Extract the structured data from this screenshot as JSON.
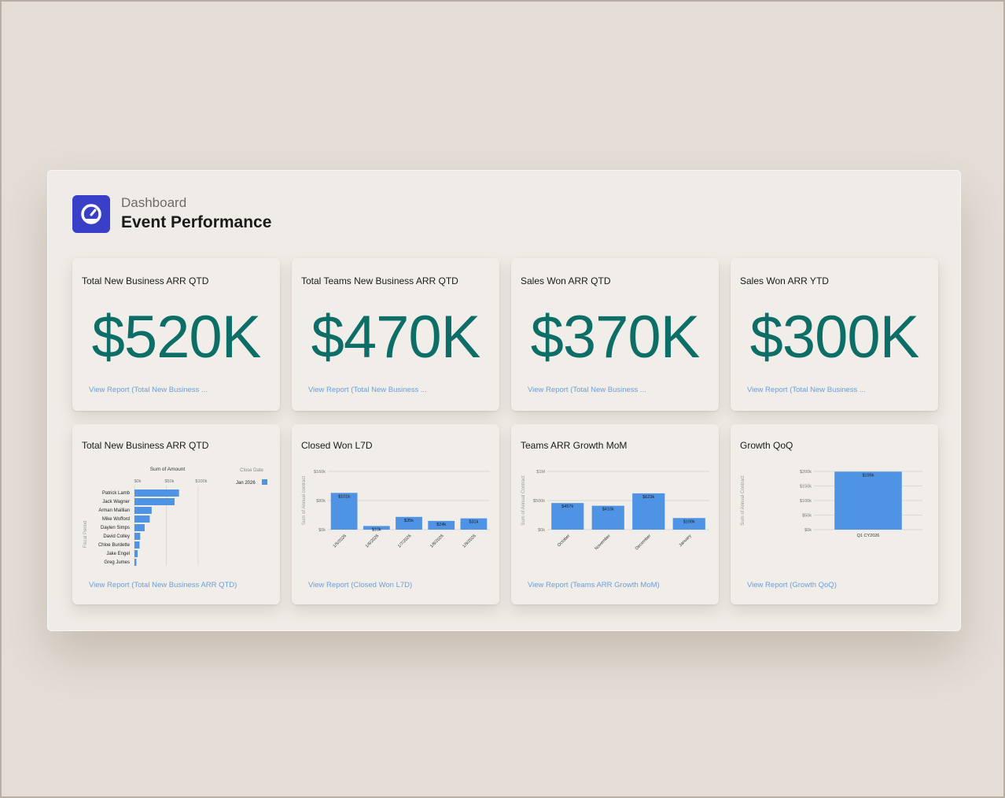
{
  "header": {
    "breadcrumb": "Dashboard",
    "title": "Event Performance",
    "logo_icon": "gauge-icon"
  },
  "colors": {
    "accent": "#0d6e67",
    "bar": "#4f94e4",
    "link": "#6a9ed8",
    "logo": "#3a3fc7"
  },
  "kpis": [
    {
      "title": "Total New Business ARR QTD",
      "value": "$520K",
      "link": "View Report (Total New Business ..."
    },
    {
      "title": "Total Teams New Business ARR QTD",
      "value": "$470K",
      "link": "View Report (Total New Business ..."
    },
    {
      "title": "Sales Won ARR QTD",
      "value": "$370K",
      "link": "View Report (Total New Business ..."
    },
    {
      "title": "Sales Won ARR YTD",
      "value": "$300K",
      "link": "View Report (Total New Business ..."
    }
  ],
  "charts": [
    {
      "title": "Total New Business ARR QTD",
      "link": "View Report (Total New Business ARR QTD)"
    },
    {
      "title": "Closed Won L7D",
      "link": "View Report (Closed Won L7D)"
    },
    {
      "title": "Teams ARR Growth MoM",
      "link": "View Report (Teams ARR Growth MoM)"
    },
    {
      "title": "Growth QoQ",
      "link": "View Report (Growth QoQ)"
    }
  ],
  "chart_data": [
    {
      "type": "bar",
      "orientation": "horizontal",
      "title": "Sum of Amount",
      "ylabel": "Fiscal Period",
      "legend_title": "Close Date",
      "legend": [
        "Jan 2026"
      ],
      "legend_position": "top-right",
      "categories": [
        "Patrick Lamb",
        "Jack Wagner",
        "Arman Maillian",
        "Mike Wofford",
        "Daylen Simps",
        "David Colley",
        "Chloe Burdette",
        "Jake Engel",
        "Greg Jumes"
      ],
      "values": [
        70,
        63,
        27,
        24,
        16,
        9,
        8,
        5,
        3
      ],
      "xticks": [
        "$0k",
        "$50k",
        "$100k"
      ],
      "xlim": [
        0,
        110
      ]
    },
    {
      "type": "bar",
      "ylabel": "Sum of Annual contract",
      "categories": [
        "1/5/2026",
        "1/6/2026",
        "1/7/2026",
        "1/8/2026",
        "1/9/2026"
      ],
      "values": [
        101,
        10,
        35,
        24,
        31
      ],
      "labels": [
        "$101k",
        "$10k",
        "$35k",
        "$24k",
        "$31k"
      ],
      "yticks": [
        "$0k",
        "$80k",
        "$160k"
      ],
      "ylim": [
        0,
        160
      ]
    },
    {
      "type": "bar",
      "ylabel": "Sum of Annual Contract",
      "categories": [
        "October",
        "November",
        "December",
        "January"
      ],
      "values": [
        457,
        410,
        623,
        199
      ],
      "labels": [
        "$457k",
        "$410k",
        "$623k",
        "$199k"
      ],
      "yticks": [
        "$0k",
        "$500k",
        "$1M"
      ],
      "ylim": [
        0,
        1000
      ]
    },
    {
      "type": "bar",
      "ylabel": "Sum of Annual Contract",
      "categories": [
        "Q1 CY2026"
      ],
      "values": [
        199
      ],
      "labels": [
        "$199k"
      ],
      "yticks": [
        "$0k",
        "$50k",
        "$100k",
        "$150k",
        "$200k"
      ],
      "ylim": [
        0,
        200
      ]
    }
  ]
}
